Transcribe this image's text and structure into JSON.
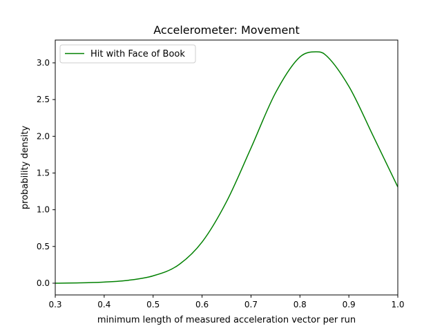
{
  "colors": {
    "series": "#008000",
    "axes": "#000000",
    "background": "#ffffff",
    "legend_border": "#cccccc"
  },
  "chart_data": {
    "type": "line",
    "title": "Accelerometer: Movement",
    "xlabel": "minimum length of measured acceleration vector per run",
    "ylabel": "probability density",
    "xlim": [
      0.3,
      1.0
    ],
    "ylim": [
      -0.16,
      3.31
    ],
    "grid": false,
    "legend_position": "top-left",
    "xticks": [
      0.3,
      0.4,
      0.5,
      0.6,
      0.7,
      0.8,
      0.9,
      1.0
    ],
    "xtick_labels": [
      "0.3",
      "0.4",
      "0.5",
      "0.6",
      "0.7",
      "0.8",
      "0.9",
      "1.0"
    ],
    "yticks": [
      0.0,
      0.5,
      1.0,
      1.5,
      2.0,
      2.5,
      3.0
    ],
    "ytick_labels": [
      "0.0",
      "0.5",
      "1.0",
      "1.5",
      "2.0",
      "2.5",
      "3.0"
    ],
    "series": [
      {
        "name": "Hit with Face of Book",
        "color": "#008000",
        "x": [
          0.3,
          0.35,
          0.4,
          0.45,
          0.5,
          0.55,
          0.6,
          0.65,
          0.7,
          0.75,
          0.8,
          0.833,
          0.85,
          0.9,
          0.95,
          1.0
        ],
        "y": [
          0.0,
          0.004,
          0.015,
          0.04,
          0.1,
          0.24,
          0.56,
          1.11,
          1.84,
          2.59,
          3.08,
          3.15,
          3.12,
          2.68,
          2.0,
          1.31
        ]
      }
    ]
  }
}
